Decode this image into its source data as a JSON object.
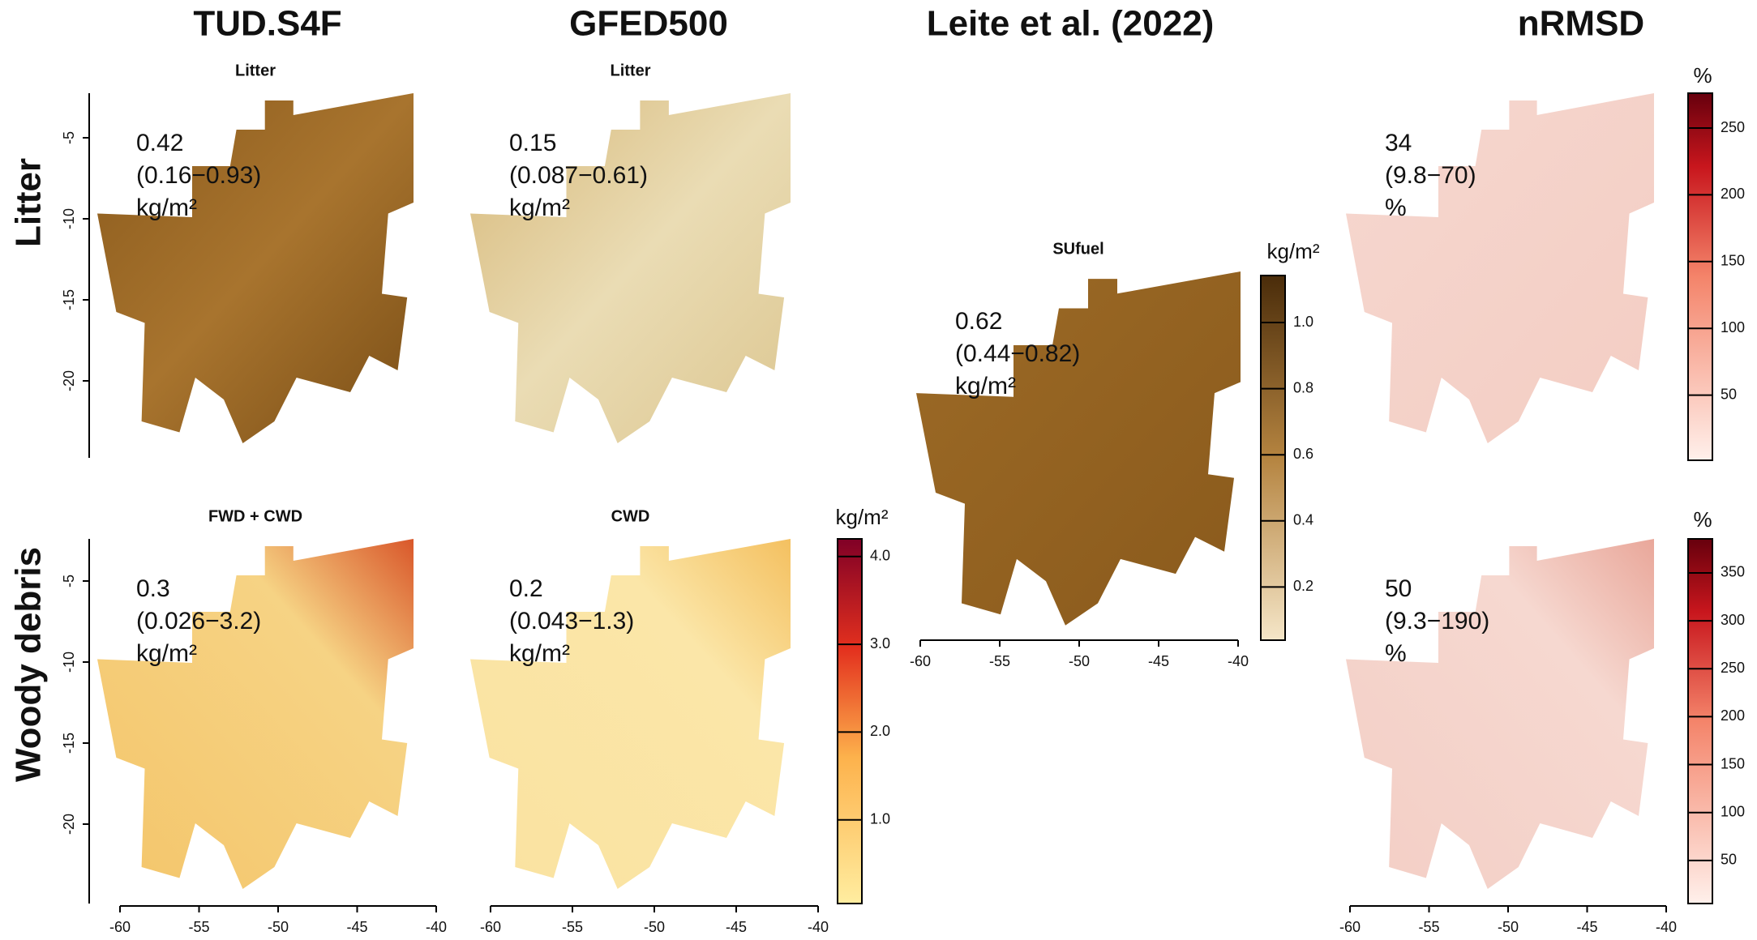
{
  "column_titles": [
    "TUD.S4F",
    "GFED500",
    "Leite et al. (2022)",
    "nRMSD"
  ],
  "row_titles": [
    "Litter",
    "Woody debris"
  ],
  "panels": [
    {
      "subtitle": "Litter",
      "stat": "0.42",
      "range": "(0.16−0.93)",
      "unit": "kg/m²"
    },
    {
      "subtitle": "Litter",
      "stat": "0.15",
      "range": "(0.087−0.61)",
      "unit": "kg/m²"
    },
    {
      "subtitle": "FWD + CWD",
      "stat": "0.3",
      "range": "(0.026−3.2)",
      "unit": "kg/m²"
    },
    {
      "subtitle": "CWD",
      "stat": "0.2",
      "range": "(0.043−1.3)",
      "unit": "kg/m²"
    },
    {
      "subtitle": "SUfuel",
      "stat": "0.62",
      "range": "(0.44−0.82)",
      "unit": "kg/m²"
    },
    {
      "stat": "34",
      "range": "(9.8−70)",
      "unit": "%"
    },
    {
      "stat": "50",
      "range": "(9.3−190)",
      "unit": "%"
    }
  ],
  "lat_ticks": [
    -5,
    -10,
    -15,
    -20
  ],
  "lon_ticks": [
    -60,
    -55,
    -50,
    -45,
    -40
  ],
  "colorbars": [
    {
      "title": "kg/m²",
      "ticks": [
        {
          "value": 1,
          "label": "1.0"
        },
        {
          "value": 2,
          "label": "2.0"
        },
        {
          "value": 3,
          "label": "3.0"
        },
        {
          "value": 4,
          "label": "4.0"
        }
      ]
    },
    {
      "title": "kg/m²",
      "ticks": [
        0.2,
        0.4,
        0.6,
        0.8,
        {
          "value": 1,
          "label": "1.0"
        }
      ]
    },
    {
      "title": "%",
      "ticks": [
        50,
        100,
        150,
        200,
        250
      ]
    },
    {
      "title": "%",
      "ticks": [
        50,
        100,
        150,
        200,
        250,
        300,
        350
      ]
    }
  ]
}
